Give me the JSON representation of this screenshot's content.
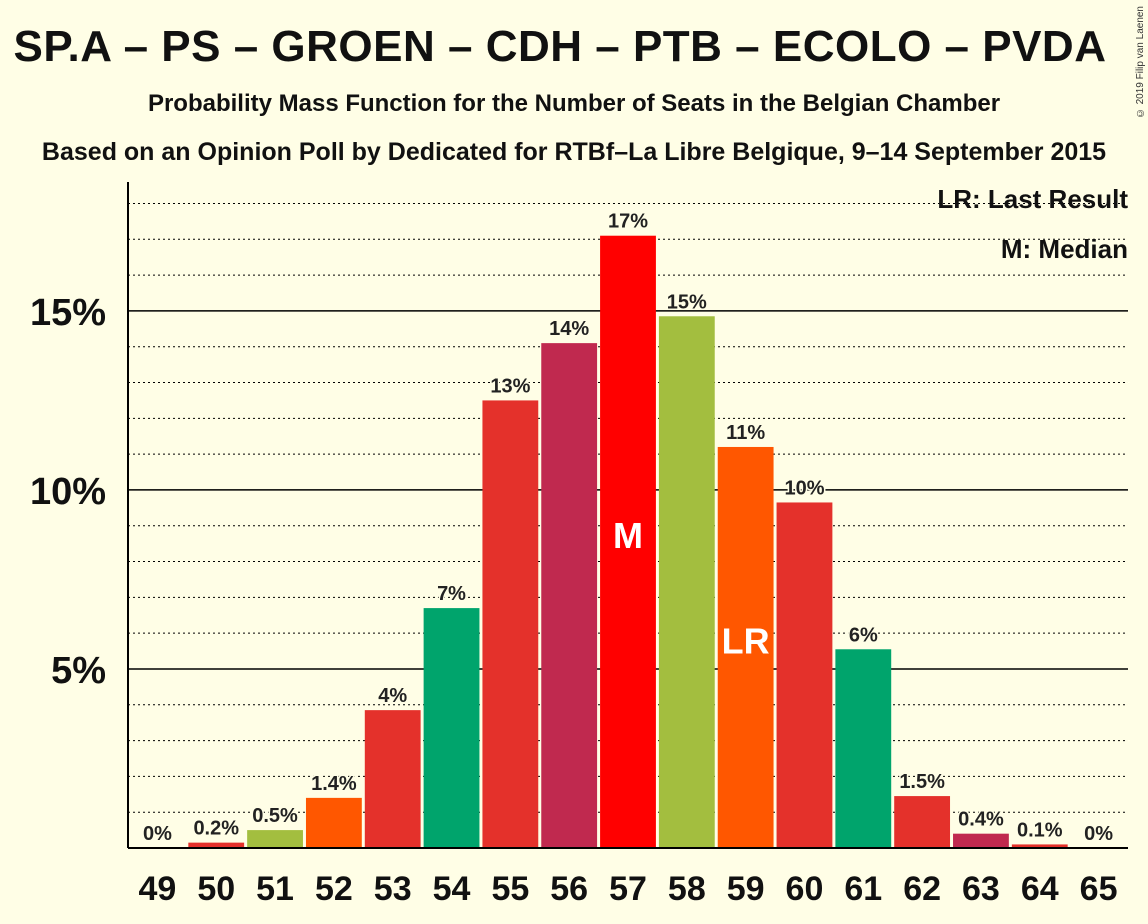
{
  "chart_data": {
    "type": "bar",
    "title": "SP.A – PS – GROEN – CDH – PTB – ECOLO – PVDA",
    "subtitle": "Probability Mass Function for the Number of Seats in the Belgian Chamber",
    "subtitle2": "Based on an Opinion Poll by Dedicated for RTBf–La Libre Belgique, 9–14 September 2015",
    "copyright": "© 2019 Filip van Laenen",
    "legend": {
      "lr": "LR: Last Result",
      "m": "M: Median"
    },
    "xlabel": "",
    "ylabel": "",
    "ylim": [
      0,
      18.6
    ],
    "yticks": [
      {
        "value": 5,
        "label": "5%"
      },
      {
        "value": 10,
        "label": "10%"
      },
      {
        "value": 15,
        "label": "15%"
      }
    ],
    "grid": "dotted every 1%",
    "categories": [
      "49",
      "50",
      "51",
      "52",
      "53",
      "54",
      "55",
      "56",
      "57",
      "58",
      "59",
      "60",
      "61",
      "62",
      "63",
      "64",
      "65"
    ],
    "values": [
      0,
      0.15,
      0.5,
      1.4,
      3.85,
      6.7,
      12.5,
      14.1,
      17.1,
      14.85,
      11.2,
      9.65,
      5.55,
      1.45,
      0.4,
      0.1,
      0
    ],
    "labels": [
      "0%",
      "0.2%",
      "0.5%",
      "1.4%",
      "4%",
      "7%",
      "13%",
      "14%",
      "17%",
      "15%",
      "11%",
      "10%",
      "6%",
      "1.5%",
      "0.4%",
      "0.1%",
      "0%"
    ],
    "colors": [
      "#E4312B",
      "#E4312B",
      "#A3BE3F",
      "#FF5700",
      "#E4312B",
      "#00A46C",
      "#E4312B",
      "#C0294F",
      "#FF0000",
      "#A3BE3F",
      "#FF5700",
      "#E4312B",
      "#00A46C",
      "#E4312B",
      "#C0294F",
      "#E4312B",
      "#E4312B"
    ],
    "markers": {
      "M": "57",
      "LR": "59"
    }
  }
}
